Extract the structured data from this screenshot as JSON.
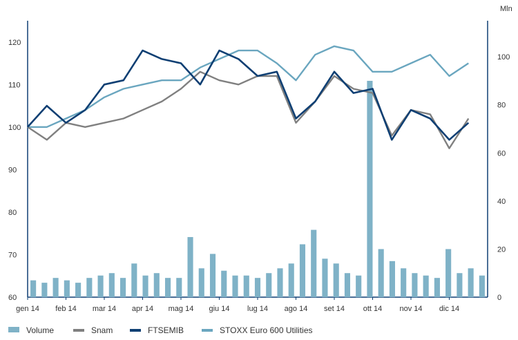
{
  "chart_data": {
    "type": "line",
    "title": "",
    "xlabel": "",
    "ylabel_left": "",
    "ylabel_right": "Mln",
    "x_ticks": [
      "gen 14",
      "feb 14",
      "mar 14",
      "apr 14",
      "mag 14",
      "giu 14",
      "lug 14",
      "ago 14",
      "set 14",
      "ott 14",
      "nov 14",
      "dic 14"
    ],
    "y_left": {
      "ylim": [
        60,
        125
      ],
      "ticks": [
        60,
        70,
        80,
        90,
        100,
        110,
        120
      ]
    },
    "y_right": {
      "ylim": [
        0,
        115
      ],
      "ticks": [
        0,
        20,
        40,
        60,
        80,
        100
      ]
    },
    "grid": false,
    "legend_position": "bottom",
    "legend": [
      "Volume",
      "Snam",
      "FTSEMIB",
      "STOXX Euro 600 Utilities"
    ],
    "colors": {
      "Volume": "#7fb2c7",
      "Snam": "#808080",
      "FTSEMIB": "#0e3f73",
      "STOXX Euro 600 Utilities": "#6aa6bf"
    },
    "series": [
      {
        "name": "Snam",
        "axis": "left",
        "x": [
          0,
          0.5,
          1,
          1.5,
          2,
          2.5,
          3,
          3.5,
          4,
          4.5,
          5,
          5.5,
          6,
          6.5,
          7,
          7.5,
          8,
          8.5,
          9,
          9.5,
          10,
          10.5,
          11,
          11.5
        ],
        "values": [
          100,
          97,
          101,
          100,
          101,
          102,
          104,
          106,
          109,
          113,
          111,
          110,
          112,
          112,
          101,
          106,
          112,
          109,
          108,
          98,
          104,
          103,
          95,
          102
        ]
      },
      {
        "name": "FTSEMIB",
        "axis": "left",
        "x": [
          0,
          0.5,
          1,
          1.5,
          2,
          2.5,
          3,
          3.5,
          4,
          4.5,
          5,
          5.5,
          6,
          6.5,
          7,
          7.5,
          8,
          8.5,
          9,
          9.5,
          10,
          10.5,
          11,
          11.5
        ],
        "values": [
          100,
          105,
          101,
          104,
          110,
          111,
          118,
          116,
          115,
          110,
          118,
          116,
          112,
          113,
          102,
          106,
          113,
          108,
          109,
          97,
          104,
          102,
          97,
          101
        ]
      },
      {
        "name": "STOXX Euro 600 Utilities",
        "axis": "left",
        "x": [
          0,
          0.5,
          1,
          1.5,
          2,
          2.5,
          3,
          3.5,
          4,
          4.5,
          5,
          5.5,
          6,
          6.5,
          7,
          7.5,
          8,
          8.5,
          9,
          9.5,
          10,
          10.5,
          11,
          11.5
        ],
        "values": [
          100,
          100,
          102,
          104,
          107,
          109,
          110,
          111,
          111,
          114,
          116,
          118,
          118,
          115,
          111,
          117,
          119,
          118,
          113,
          113,
          115,
          117,
          112,
          115
        ]
      }
    ],
    "volume": {
      "name": "Volume",
      "axis": "right",
      "unit": "Mln",
      "values": [
        7,
        6,
        8,
        7,
        6,
        8,
        9,
        10,
        8,
        14,
        9,
        10,
        8,
        8,
        25,
        12,
        18,
        11,
        9,
        9,
        8,
        10,
        12,
        14,
        22,
        28,
        16,
        14,
        10,
        9,
        90,
        20,
        15,
        12,
        10,
        9,
        8,
        20,
        10,
        12,
        9
      ]
    }
  }
}
